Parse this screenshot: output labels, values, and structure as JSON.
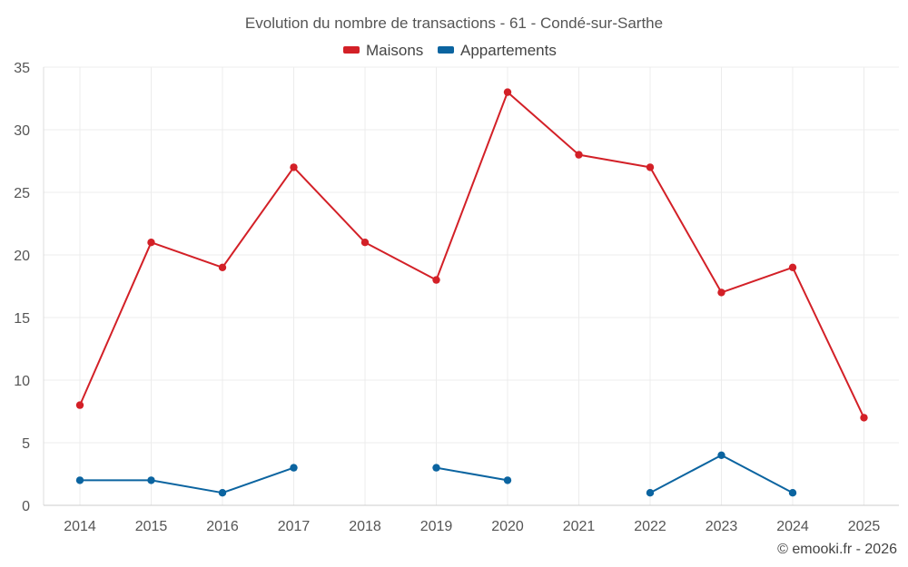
{
  "chart_data": {
    "type": "line",
    "title": "Evolution du nombre de transactions - 61 - Condé-sur-Sarthe",
    "x": [
      "2014",
      "2015",
      "2016",
      "2017",
      "2018",
      "2019",
      "2020",
      "2021",
      "2022",
      "2023",
      "2024",
      "2025"
    ],
    "ylim": [
      0,
      35
    ],
    "yticks": [
      0,
      5,
      10,
      15,
      20,
      25,
      30,
      35
    ],
    "grid": true,
    "legend_position": "top-center",
    "series": [
      {
        "name": "Maisons",
        "color": "#d32027",
        "values": [
          8,
          21,
          19,
          27,
          21,
          18,
          33,
          28,
          27,
          17,
          19,
          7
        ]
      },
      {
        "name": "Appartements",
        "color": "#0b64a0",
        "values": [
          2,
          2,
          1,
          3,
          null,
          3,
          2,
          null,
          1,
          4,
          1,
          null
        ]
      }
    ]
  },
  "credit": "© emooki.fr - 2026"
}
